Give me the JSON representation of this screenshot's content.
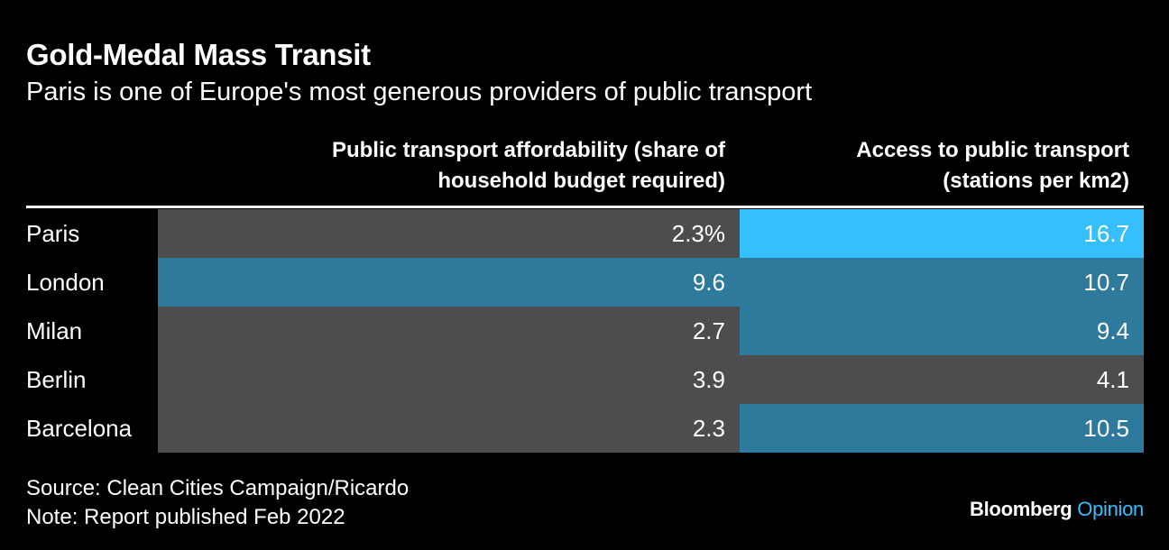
{
  "header": {
    "title": "Gold-Medal Mass Transit",
    "subtitle": "Paris is one of Europe's most generous providers of public transport"
  },
  "chart_data": {
    "type": "table",
    "columns": [
      {
        "label_line1": "Public transport affordability (share of",
        "label_line2": "household budget required)"
      },
      {
        "label_line1": "Access to public transport",
        "label_line2": "(stations per km2)"
      }
    ],
    "rows": [
      {
        "city": "Paris",
        "affordability": 2.3,
        "affordability_label": "2.3%",
        "access": 16.7,
        "access_label": "16.7"
      },
      {
        "city": "London",
        "affordability": 9.6,
        "affordability_label": "9.6",
        "access": 10.7,
        "access_label": "10.7"
      },
      {
        "city": "Milan",
        "affordability": 2.7,
        "affordability_label": "2.7",
        "access": 9.4,
        "access_label": "9.4"
      },
      {
        "city": "Berlin",
        "affordability": 3.9,
        "affordability_label": "3.9",
        "access": 4.1,
        "access_label": "4.1"
      },
      {
        "city": "Barcelona",
        "affordability": 2.3,
        "affordability_label": "2.3",
        "access": 10.5,
        "access_label": "10.5"
      }
    ],
    "colors": {
      "highlight": "#35bfff",
      "medium": "#2e7a9c",
      "low": "#4d4d4d"
    }
  },
  "footer": {
    "source": "Source: Clean Cities Campaign/Ricardo",
    "note": "Note: Report published Feb 2022",
    "brand_main": "Bloomberg",
    "brand_accent": "Opinion",
    "brand_accent_color": "#35bfff"
  }
}
